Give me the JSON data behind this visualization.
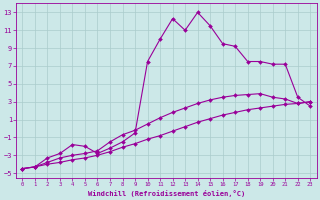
{
  "xlabel": "Windchill (Refroidissement éolien,°C)",
  "bg_color": "#cce8e8",
  "grid_color": "#aacccc",
  "line_color": "#990099",
  "xlim": [
    -0.5,
    23.5
  ],
  "ylim": [
    -5.5,
    14.0
  ],
  "xticks": [
    0,
    1,
    2,
    3,
    4,
    5,
    6,
    7,
    8,
    9,
    10,
    11,
    12,
    13,
    14,
    15,
    16,
    17,
    18,
    19,
    20,
    21,
    22,
    23
  ],
  "yticks": [
    -5,
    -3,
    -1,
    1,
    3,
    5,
    7,
    9,
    11,
    13
  ],
  "series": [
    {
      "x": [
        0,
        1,
        2,
        3,
        4,
        5,
        6,
        7,
        8,
        9,
        10,
        11,
        12,
        13,
        14,
        15,
        16,
        17,
        18,
        19,
        20,
        21,
        22,
        23
      ],
      "y": [
        -4.5,
        -4.3,
        -4.0,
        -3.8,
        -3.5,
        -3.3,
        -3.0,
        -2.6,
        -2.1,
        -1.7,
        -1.2,
        -0.8,
        -0.3,
        0.2,
        0.7,
        1.1,
        1.5,
        1.8,
        2.1,
        2.3,
        2.5,
        2.7,
        2.8,
        3.0
      ]
    },
    {
      "x": [
        0,
        1,
        2,
        3,
        4,
        5,
        6,
        7,
        8,
        9,
        10,
        11,
        12,
        13,
        14,
        15,
        16,
        17,
        18,
        19,
        20,
        21,
        22,
        23
      ],
      "y": [
        -4.5,
        -4.3,
        -3.8,
        -3.3,
        -3.0,
        -2.8,
        -2.5,
        -1.5,
        -0.7,
        -0.2,
        0.5,
        1.2,
        1.8,
        2.3,
        2.8,
        3.2,
        3.5,
        3.7,
        3.8,
        3.9,
        3.5,
        3.3,
        2.8,
        3.0
      ]
    },
    {
      "x": [
        0,
        1,
        2,
        3,
        4,
        5,
        6,
        7,
        8,
        9,
        10,
        11,
        12,
        13,
        14,
        15,
        16,
        17,
        18,
        19,
        20,
        21,
        22,
        23
      ],
      "y": [
        -4.5,
        -4.3,
        -3.3,
        -2.8,
        -1.8,
        -2.0,
        -2.8,
        -2.2,
        -1.5,
        -0.5,
        7.5,
        10.0,
        12.3,
        11.0,
        13.0,
        11.5,
        9.5,
        9.2,
        7.5,
        7.5,
        7.2,
        7.2,
        3.5,
        2.5
      ]
    }
  ]
}
